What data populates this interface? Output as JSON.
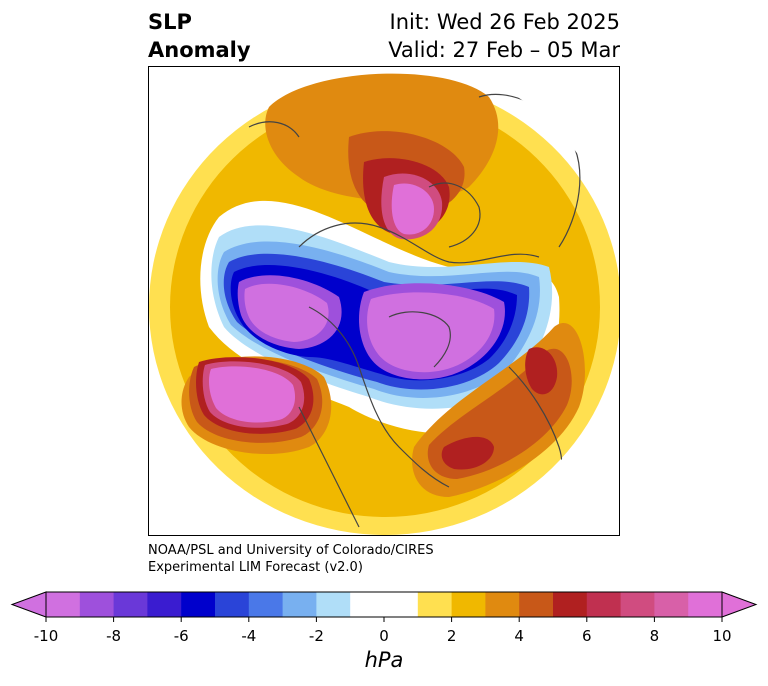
{
  "title": {
    "left_line1": "SLP",
    "left_line2": "Anomaly",
    "right_line1": "Init: Wed 26 Feb 2025",
    "right_line2": "Valid: 27 Feb – 05 Mar"
  },
  "credit": {
    "line1": "NOAA/PSL and University of Colorado/CIRES",
    "line2": "Experimental LIM Forecast (v2.0)"
  },
  "colorbar": {
    "units": "hPa",
    "ticks": [
      "-10",
      "-8",
      "-6",
      "-4",
      "-2",
      "0",
      "2",
      "4",
      "6",
      "8",
      "10"
    ],
    "colors": [
      "#d070e0",
      "#9e50dc",
      "#6a38d8",
      "#3a1cd0",
      "#0000cc",
      "#2a44d8",
      "#4a78e8",
      "#78b0f0",
      "#b0def8",
      "#ffffff",
      "#ffffff",
      "#ffe050",
      "#f0b800",
      "#e08a10",
      "#c85818",
      "#b02020",
      "#c03050",
      "#d04c80",
      "#d860a8",
      "#e070d8"
    ],
    "extend": "both"
  }
}
